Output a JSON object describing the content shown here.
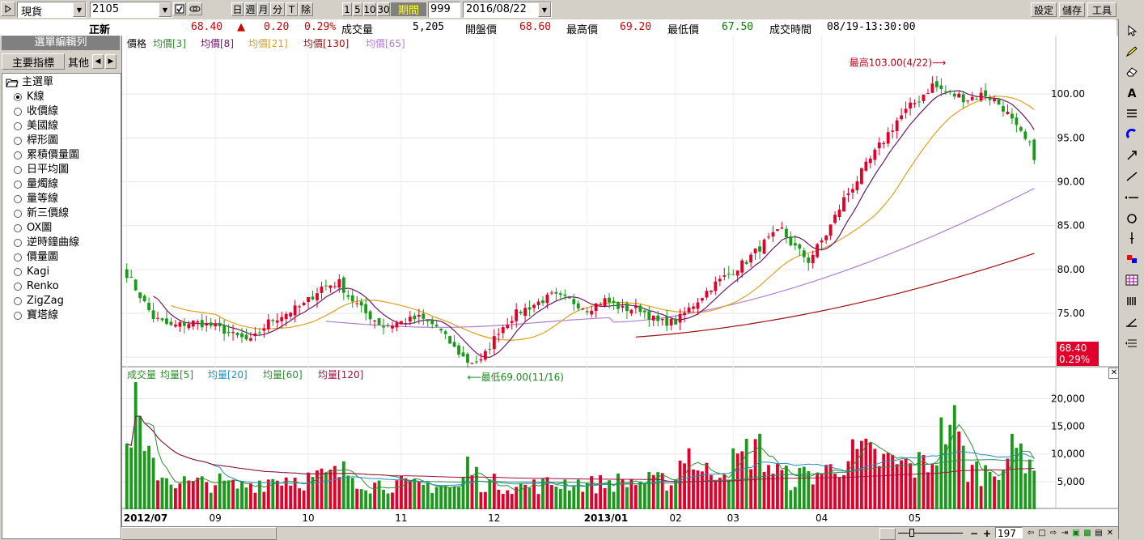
{
  "toolbar": {
    "market": "現貨",
    "symbol": "2105",
    "period_buttons": [
      "日",
      "週",
      "月",
      "分",
      "T",
      "除"
    ],
    "minute_buttons": [
      "1",
      "5",
      "10",
      "30"
    ],
    "period_label": "期間",
    "count": "999",
    "date": "2016/08/22",
    "settings_label": "設定",
    "save_label": "儲存",
    "tools_label": "工具"
  },
  "quote": {
    "name": "正新",
    "price": "68.40",
    "change_arrow": "▲",
    "change": "0.20",
    "change_pct": "0.29%",
    "volume_label": "成交量",
    "volume": "5,205",
    "open_label": "開盤價",
    "open": "68.60",
    "high_label": "最高價",
    "high": "69.20",
    "low_label": "最低價",
    "low": "67.50",
    "time_label": "成交時間",
    "time": "08/19-13:30:00"
  },
  "sidebar": {
    "title": "選單編輯列",
    "tabs": [
      "主要指標",
      "其他"
    ],
    "root": "主選單",
    "items": [
      "K線",
      "收價線",
      "美國線",
      "桿形圖",
      "累積價量圖",
      "日平均圖",
      "量燭線",
      "量等線",
      "新三價線",
      "OX圖",
      "逆時鐘曲線",
      "價量圖",
      "Kagi",
      "Renko",
      "ZigZag",
      "寶塔線"
    ],
    "selected_index": 0
  },
  "price_legend": [
    {
      "label": "價格",
      "color": "#000000"
    },
    {
      "label": "均價[3]",
      "color": "#2e8b2e"
    },
    {
      "label": "均價[8]",
      "color": "#6a1a6a"
    },
    {
      "label": "均價[21]",
      "color": "#e0a020"
    },
    {
      "label": "均價[130]",
      "color": "#a01010"
    },
    {
      "label": "均價[65]",
      "color": "#b080d0"
    }
  ],
  "volume_legend": [
    {
      "label": "成交量",
      "color": "#2e8b2e"
    },
    {
      "label": "均量[5]",
      "color": "#2e8b2e"
    },
    {
      "label": "均量[20]",
      "color": "#2090c0"
    },
    {
      "label": "均量[60]",
      "color": "#2e8b2e"
    },
    {
      "label": "均量[120]",
      "color": "#a01040"
    }
  ],
  "annotations": {
    "high": "最高103.00(4/22)⟶",
    "low": "⟵最低69.00(11/16)"
  },
  "last_price_tag": {
    "price": "68.40",
    "pct": "0.29%"
  },
  "chart_data": {
    "type": "candlestick",
    "price_axis_ticks": [
      "100.00",
      "95.00",
      "90.00",
      "85.00",
      "80.00",
      "75.00",
      "70.00"
    ],
    "price_ticks_values": [
      100,
      95,
      90,
      85,
      80,
      75,
      70
    ],
    "price_ylim": [
      69,
      105
    ],
    "volume_axis_ticks": [
      "20,000",
      "15,000",
      "10,000",
      "5,000"
    ],
    "volume_ticks_values": [
      20000,
      15000,
      10000,
      5000
    ],
    "volume_ylim": [
      0,
      23000
    ],
    "x_ticks": [
      "2012/07",
      "09",
      "10",
      "11",
      "12",
      "2013/01",
      "02",
      "03",
      "04",
      "05"
    ],
    "x_tick_index": [
      0,
      20,
      41,
      62,
      83,
      104,
      124,
      137,
      157,
      178
    ],
    "close_path": [
      [
        0,
        79.5
      ],
      [
        3,
        77
      ],
      [
        6,
        74.5
      ],
      [
        10,
        73.5
      ],
      [
        15,
        74
      ],
      [
        20,
        73.5
      ],
      [
        24,
        72.5
      ],
      [
        28,
        71.8
      ],
      [
        32,
        74
      ],
      [
        36,
        75
      ],
      [
        40,
        76
      ],
      [
        44,
        78
      ],
      [
        48,
        78.5
      ],
      [
        50,
        77
      ],
      [
        54,
        75
      ],
      [
        58,
        73.5
      ],
      [
        62,
        74
      ],
      [
        66,
        74.5
      ],
      [
        70,
        73.5
      ],
      [
        74,
        71
      ],
      [
        77,
        69.5
      ],
      [
        80,
        69.5
      ],
      [
        84,
        73
      ],
      [
        88,
        75
      ],
      [
        92,
        76
      ],
      [
        96,
        77
      ],
      [
        100,
        76.5
      ],
      [
        104,
        75.5
      ],
      [
        108,
        76.5
      ],
      [
        112,
        75.5
      ],
      [
        116,
        75.5
      ],
      [
        120,
        74
      ],
      [
        124,
        74
      ],
      [
        128,
        76
      ],
      [
        132,
        78
      ],
      [
        136,
        79.5
      ],
      [
        140,
        81
      ],
      [
        144,
        83
      ],
      [
        148,
        84.5
      ],
      [
        150,
        83
      ],
      [
        154,
        81
      ],
      [
        158,
        84
      ],
      [
        162,
        88
      ],
      [
        166,
        91
      ],
      [
        170,
        94
      ],
      [
        174,
        97
      ],
      [
        178,
        99
      ],
      [
        182,
        101
      ],
      [
        186,
        100
      ],
      [
        190,
        99.5
      ],
      [
        194,
        100
      ],
      [
        198,
        98.5
      ],
      [
        201,
        96
      ],
      [
        204,
        94
      ],
      [
        205,
        93
      ]
    ],
    "volume_series": [
      [
        0,
        12000
      ],
      [
        2,
        23000
      ],
      [
        4,
        10000
      ],
      [
        6,
        9000
      ],
      [
        8,
        7000
      ],
      [
        10,
        6000
      ],
      [
        15,
        5000
      ],
      [
        20,
        5500
      ],
      [
        25,
        4500
      ],
      [
        30,
        5500
      ],
      [
        35,
        6500
      ],
      [
        40,
        6000
      ],
      [
        45,
        6500
      ],
      [
        50,
        7500
      ],
      [
        55,
        5000
      ],
      [
        60,
        5200
      ],
      [
        65,
        4500
      ],
      [
        70,
        5000
      ],
      [
        75,
        4000
      ],
      [
        77,
        9000
      ],
      [
        80,
        5500
      ],
      [
        85,
        5000
      ],
      [
        90,
        4500
      ],
      [
        95,
        5000
      ],
      [
        100,
        5500
      ],
      [
        105,
        5000
      ],
      [
        110,
        5500
      ],
      [
        115,
        5500
      ],
      [
        120,
        5500
      ],
      [
        124,
        6000
      ],
      [
        126,
        13000
      ],
      [
        130,
        7000
      ],
      [
        134,
        8500
      ],
      [
        138,
        9500
      ],
      [
        142,
        13000
      ],
      [
        146,
        8000
      ],
      [
        150,
        6000
      ],
      [
        154,
        7000
      ],
      [
        158,
        7500
      ],
      [
        162,
        10000
      ],
      [
        166,
        11000
      ],
      [
        170,
        10000
      ],
      [
        174,
        9000
      ],
      [
        178,
        8500
      ],
      [
        182,
        10000
      ],
      [
        186,
        19000
      ],
      [
        190,
        8000
      ],
      [
        194,
        7500
      ],
      [
        198,
        10000
      ],
      [
        202,
        12000
      ],
      [
        205,
        10000
      ]
    ]
  }
}
